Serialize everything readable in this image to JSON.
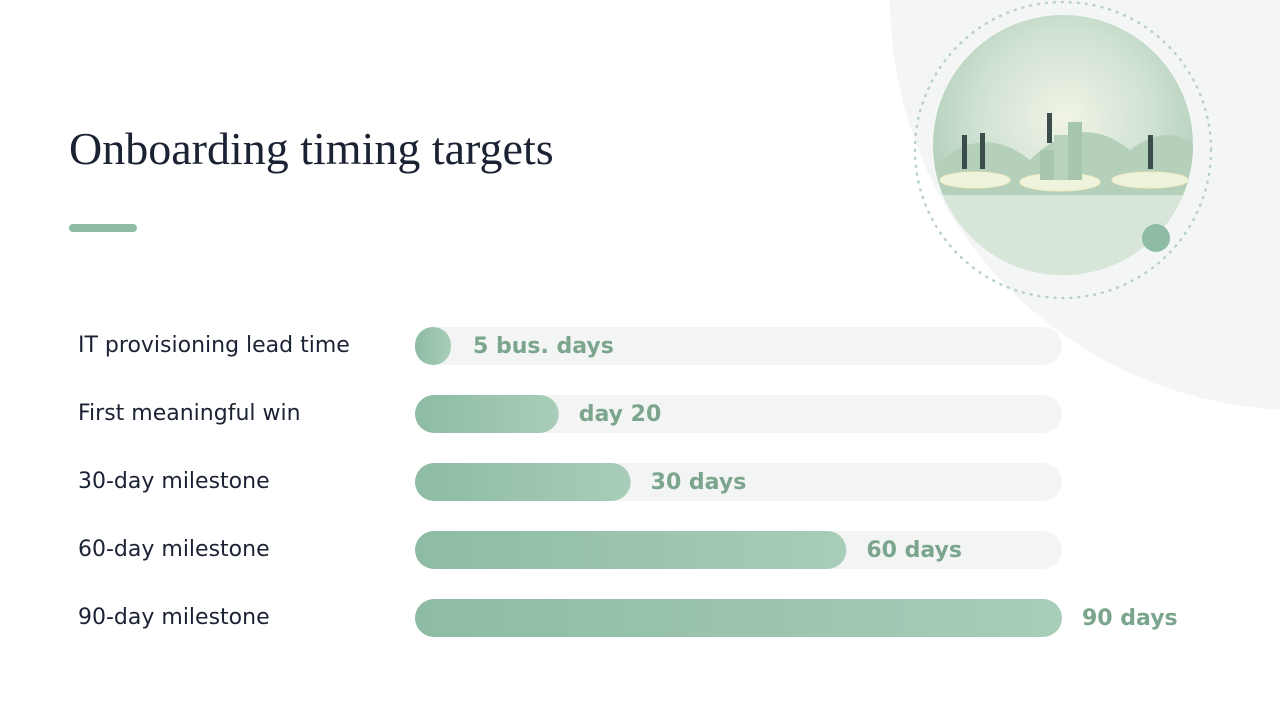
{
  "chart_data": {
    "type": "bar",
    "orientation": "horizontal",
    "title": "Onboarding timing targets",
    "categories": [
      "IT provisioning lead time",
      "First meaningful win",
      "30-day milestone",
      "60-day milestone",
      "90-day milestone"
    ],
    "values": [
      5,
      20,
      30,
      60,
      90
    ],
    "value_labels": [
      "5 bus. days",
      "day 20",
      "30 days",
      "60 days",
      "90 days"
    ],
    "color": "#8dbba3",
    "xlim": [
      0,
      90
    ]
  }
}
